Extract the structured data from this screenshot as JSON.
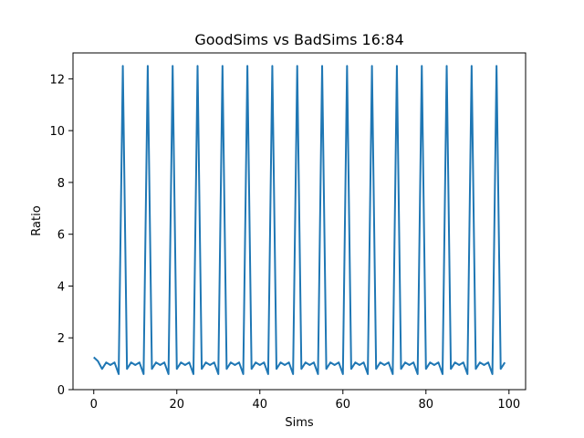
{
  "chart_data": {
    "type": "line",
    "title": "GoodSims vs BadSims 16:84",
    "xlabel": "Sims",
    "ylabel": "Ratio",
    "xlim": [
      -5,
      104
    ],
    "ylim": [
      0,
      13
    ],
    "xticks": [
      0,
      20,
      40,
      60,
      80,
      100
    ],
    "yticks": [
      0,
      2,
      4,
      6,
      8,
      10,
      12
    ],
    "grid": false,
    "legend": "none",
    "line_color": "#1f77b4",
    "series": [
      {
        "x": [
          0,
          1,
          2,
          3,
          4,
          5,
          6,
          7,
          8,
          9,
          10,
          11,
          12,
          13,
          14,
          15,
          16,
          17,
          18,
          19,
          20,
          21,
          22,
          23,
          24,
          25,
          26,
          27,
          28,
          29,
          30,
          31,
          32,
          33,
          34,
          35,
          36,
          37,
          38,
          39,
          40,
          41,
          42,
          43,
          44,
          45,
          46,
          47,
          48,
          49,
          50,
          51,
          52,
          53,
          54,
          55,
          56,
          57,
          58,
          59,
          60,
          61,
          62,
          63,
          64,
          65,
          66,
          67,
          68,
          69,
          70,
          71,
          72,
          73,
          74,
          75,
          76,
          77,
          78,
          79,
          80,
          81,
          82,
          83,
          84,
          85,
          86,
          87,
          88,
          89,
          90,
          91,
          92,
          93,
          94,
          95,
          96,
          97,
          98,
          99
        ],
        "values": [
          1.25,
          1.1,
          0.8,
          1.05,
          0.95,
          1.05,
          0.6,
          12.5,
          0.8,
          1.05,
          0.95,
          1.05,
          0.6,
          12.5,
          0.8,
          1.05,
          0.95,
          1.05,
          0.6,
          12.5,
          0.8,
          1.05,
          0.95,
          1.05,
          0.6,
          12.5,
          0.8,
          1.05,
          0.95,
          1.05,
          0.6,
          12.5,
          0.8,
          1.05,
          0.95,
          1.05,
          0.6,
          12.5,
          0.8,
          1.05,
          0.95,
          1.05,
          0.6,
          12.5,
          0.8,
          1.05,
          0.95,
          1.05,
          0.6,
          12.5,
          0.8,
          1.05,
          0.95,
          1.05,
          0.6,
          12.5,
          0.8,
          1.05,
          0.95,
          1.05,
          0.6,
          12.5,
          0.8,
          1.05,
          0.95,
          1.05,
          0.6,
          12.5,
          0.8,
          1.05,
          0.95,
          1.05,
          0.6,
          12.5,
          0.8,
          1.05,
          0.95,
          1.05,
          0.6,
          12.5,
          0.8,
          1.05,
          0.95,
          1.05,
          0.6,
          12.5,
          0.8,
          1.05,
          0.95,
          1.05,
          0.6,
          12.5,
          0.8,
          1.05,
          0.95,
          1.05,
          0.6,
          12.5,
          0.8,
          1.05
        ]
      }
    ]
  }
}
